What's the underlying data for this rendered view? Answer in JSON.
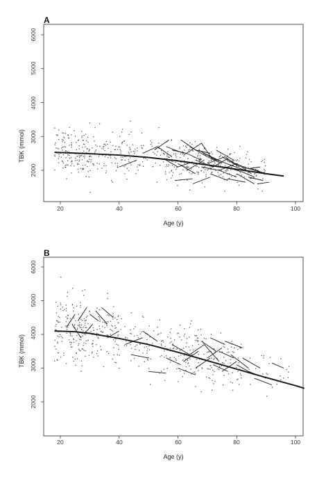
{
  "colors": {
    "ink": "#1a1a1a",
    "dots": "#555555",
    "frame": "#222222",
    "background": "#ffffff"
  },
  "chart_data": [
    {
      "panel": "A",
      "type": "scatter",
      "xlabel": "Age (y)",
      "ylabel": "TBK (mmol)",
      "xlim": [
        15,
        105
      ],
      "ylim": [
        1200,
        6300
      ],
      "x_ticks": [
        20,
        40,
        60,
        80,
        100
      ],
      "y_ticks": [
        2000,
        3000,
        4000,
        5000,
        6000
      ],
      "grid": false,
      "legend": "none",
      "trend_line": {
        "x": [
          18,
          30,
          40,
          50,
          60,
          70,
          80,
          90,
          96
        ],
        "y": [
          2530,
          2490,
          2450,
          2380,
          2280,
          2160,
          2030,
          1900,
          1830
        ]
      },
      "point_clusters": [
        {
          "x_range": [
            18,
            30
          ],
          "y_mean": 2550,
          "y_sd": 330,
          "n": 150
        },
        {
          "x_range": [
            30,
            45
          ],
          "y_mean": 2500,
          "y_sd": 330,
          "n": 115
        },
        {
          "x_range": [
            45,
            55
          ],
          "y_mean": 2400,
          "y_sd": 310,
          "n": 45
        },
        {
          "x_range": [
            55,
            70
          ],
          "y_mean": 2230,
          "y_sd": 280,
          "n": 140
        },
        {
          "x_range": [
            70,
            80
          ],
          "y_mean": 2130,
          "y_sd": 260,
          "n": 100
        },
        {
          "x_range": [
            80,
            90
          ],
          "y_mean": 2000,
          "y_sd": 230,
          "n": 50
        }
      ],
      "trajectories": [
        {
          "x": [
            48,
            53,
            58
          ],
          "y": [
            2500,
            2700,
            2400
          ]
        },
        {
          "x": [
            52,
            57
          ],
          "y": [
            2600,
            2900
          ]
        },
        {
          "x": [
            55,
            60,
            65
          ],
          "y": [
            2350,
            2100,
            2250
          ]
        },
        {
          "x": [
            56,
            62
          ],
          "y": [
            2700,
            2500
          ]
        },
        {
          "x": [
            58,
            63,
            68
          ],
          "y": [
            2600,
            2500,
            2300
          ]
        },
        {
          "x": [
            60,
            66
          ],
          "y": [
            2200,
            1900
          ]
        },
        {
          "x": [
            62,
            68,
            72
          ],
          "y": [
            2450,
            2800,
            2300
          ]
        },
        {
          "x": [
            63,
            69
          ],
          "y": [
            2000,
            2300
          ]
        },
        {
          "x": [
            64,
            70,
            75
          ],
          "y": [
            2700,
            2400,
            2200
          ]
        },
        {
          "x": [
            65,
            71
          ],
          "y": [
            1600,
            1800
          ]
        },
        {
          "x": [
            66,
            72,
            77
          ],
          "y": [
            2300,
            2100,
            2350
          ]
        },
        {
          "x": [
            67,
            73
          ],
          "y": [
            2600,
            2300
          ]
        },
        {
          "x": [
            68,
            74,
            80
          ],
          "y": [
            2100,
            2000,
            1800
          ]
        },
        {
          "x": [
            69,
            75
          ],
          "y": [
            2500,
            2250
          ]
        },
        {
          "x": [
            70,
            76,
            81
          ],
          "y": [
            2200,
            2400,
            2100
          ]
        },
        {
          "x": [
            71,
            77
          ],
          "y": [
            1900,
            1700
          ]
        },
        {
          "x": [
            72,
            78,
            83
          ],
          "y": [
            2350,
            2150,
            2000
          ]
        },
        {
          "x": [
            73,
            79
          ],
          "y": [
            2600,
            2300
          ]
        },
        {
          "x": [
            74,
            80,
            85
          ],
          "y": [
            2000,
            2200,
            1900
          ]
        },
        {
          "x": [
            75,
            81
          ],
          "y": [
            2400,
            2100
          ]
        },
        {
          "x": [
            76,
            82,
            86
          ],
          "y": [
            2100,
            1950,
            1800
          ]
        },
        {
          "x": [
            77,
            83
          ],
          "y": [
            1750,
            1650
          ]
        },
        {
          "x": [
            78,
            84,
            88
          ],
          "y": [
            2250,
            2050,
            2100
          ]
        },
        {
          "x": [
            80,
            86
          ],
          "y": [
            1900,
            1600
          ]
        },
        {
          "x": [
            82,
            88
          ],
          "y": [
            2100,
            1950
          ]
        },
        {
          "x": [
            84,
            89
          ],
          "y": [
            1800,
            1700
          ]
        },
        {
          "x": [
            85,
            90
          ],
          "y": [
            2050,
            1900
          ]
        },
        {
          "x": [
            59,
            65
          ],
          "y": [
            1700,
            1750
          ]
        },
        {
          "x": [
            61,
            66,
            71
          ],
          "y": [
            2900,
            2600,
            2500
          ]
        },
        {
          "x": [
            40,
            46
          ],
          "y": [
            2100,
            2300
          ]
        },
        {
          "x": [
            87,
            91
          ],
          "y": [
            1600,
            1650
          ]
        }
      ]
    },
    {
      "panel": "B",
      "type": "scatter",
      "xlabel": "Age (y)",
      "ylabel": "TBK (mmol)",
      "xlim": [
        15,
        103
      ],
      "ylim": [
        1300,
        6250
      ],
      "x_ticks": [
        20,
        40,
        60,
        80,
        100
      ],
      "y_ticks": [
        2000,
        3000,
        4000,
        5000,
        6000
      ],
      "grid": false,
      "legend": "none",
      "trend_line": {
        "x": [
          18,
          25,
          30,
          40,
          50,
          60,
          70,
          80,
          90,
          100,
          103
        ],
        "y": [
          4100,
          4080,
          4030,
          3880,
          3700,
          3470,
          3220,
          2970,
          2720,
          2480,
          2400
        ]
      },
      "point_clusters": [
        {
          "x_range": [
            18,
            30
          ],
          "y_mean": 4120,
          "y_sd": 500,
          "n": 170
        },
        {
          "x_range": [
            30,
            40
          ],
          "y_mean": 4000,
          "y_sd": 480,
          "n": 95
        },
        {
          "x_range": [
            40,
            55
          ],
          "y_mean": 3800,
          "y_sd": 450,
          "n": 75
        },
        {
          "x_range": [
            55,
            70
          ],
          "y_mean": 3400,
          "y_sd": 420,
          "n": 120
        },
        {
          "x_range": [
            70,
            82
          ],
          "y_mean": 3150,
          "y_sd": 400,
          "n": 80
        },
        {
          "x_range": [
            82,
            98
          ],
          "y_mean": 2800,
          "y_sd": 350,
          "n": 25
        }
      ],
      "trajectories": [
        {
          "x": [
            22,
            25
          ],
          "y": [
            4200,
            4600
          ]
        },
        {
          "x": [
            24,
            27
          ],
          "y": [
            4300,
            3900
          ]
        },
        {
          "x": [
            26,
            29
          ],
          "y": [
            4400,
            4800
          ]
        },
        {
          "x": [
            28,
            31
          ],
          "y": [
            4000,
            4300
          ]
        },
        {
          "x": [
            30,
            33
          ],
          "y": [
            4600,
            4400
          ]
        },
        {
          "x": [
            32,
            36
          ],
          "y": [
            4700,
            4300
          ]
        },
        {
          "x": [
            34,
            38
          ],
          "y": [
            4800,
            4500
          ]
        },
        {
          "x": [
            36,
            40
          ],
          "y": [
            3900,
            4100
          ]
        },
        {
          "x": [
            42,
            48
          ],
          "y": [
            3700,
            3900
          ]
        },
        {
          "x": [
            44,
            50
          ],
          "y": [
            3400,
            3300
          ]
        },
        {
          "x": [
            48,
            53
          ],
          "y": [
            4100,
            3800
          ]
        },
        {
          "x": [
            50,
            56
          ],
          "y": [
            2900,
            2850
          ]
        },
        {
          "x": [
            58,
            64
          ],
          "y": [
            3700,
            3400
          ]
        },
        {
          "x": [
            62,
            67
          ],
          "y": [
            3200,
            3500
          ]
        },
        {
          "x": [
            64,
            69,
            74
          ],
          "y": [
            3400,
            3700,
            3200
          ]
        },
        {
          "x": [
            66,
            71
          ],
          "y": [
            3000,
            3300
          ]
        },
        {
          "x": [
            68,
            73
          ],
          "y": [
            3800,
            3500
          ]
        },
        {
          "x": [
            70,
            75
          ],
          "y": [
            3300,
            3600
          ]
        },
        {
          "x": [
            71,
            76
          ],
          "y": [
            3900,
            3700
          ]
        },
        {
          "x": [
            72,
            77
          ],
          "y": [
            3100,
            2900
          ]
        },
        {
          "x": [
            74,
            79
          ],
          "y": [
            3500,
            3300
          ]
        },
        {
          "x": [
            75,
            80
          ],
          "y": [
            2900,
            3200
          ]
        },
        {
          "x": [
            76,
            82
          ],
          "y": [
            3800,
            3600
          ]
        },
        {
          "x": [
            78,
            84
          ],
          "y": [
            3400,
            3000
          ]
        },
        {
          "x": [
            80,
            86
          ],
          "y": [
            3100,
            2800
          ]
        },
        {
          "x": [
            82,
            88
          ],
          "y": [
            3300,
            3000
          ]
        },
        {
          "x": [
            84,
            90
          ],
          "y": [
            2900,
            2700
          ]
        },
        {
          "x": [
            86,
            92
          ],
          "y": [
            2700,
            2500
          ]
        },
        {
          "x": [
            92,
            96
          ],
          "y": [
            3150,
            3000
          ]
        },
        {
          "x": [
            60,
            66
          ],
          "y": [
            3000,
            2800
          ]
        },
        {
          "x": [
            56,
            61
          ],
          "y": [
            3300,
            3100
          ]
        }
      ]
    }
  ],
  "figure": {
    "panel_a": {
      "letter": "A",
      "ylabel": "TBK (mmol)",
      "xlabel": "Age (y)",
      "yticks": [
        "2000",
        "3000",
        "4000",
        "5000",
        "6000"
      ],
      "xticks": [
        "20",
        "40",
        "60",
        "80",
        "100"
      ]
    },
    "panel_b": {
      "letter": "B",
      "ylabel": "TBK (mmol)",
      "xlabel": "Age (y)",
      "yticks": [
        "2000",
        "3000",
        "4000",
        "5000",
        "6000"
      ],
      "xticks": [
        "20",
        "40",
        "60",
        "80",
        "100"
      ]
    }
  }
}
